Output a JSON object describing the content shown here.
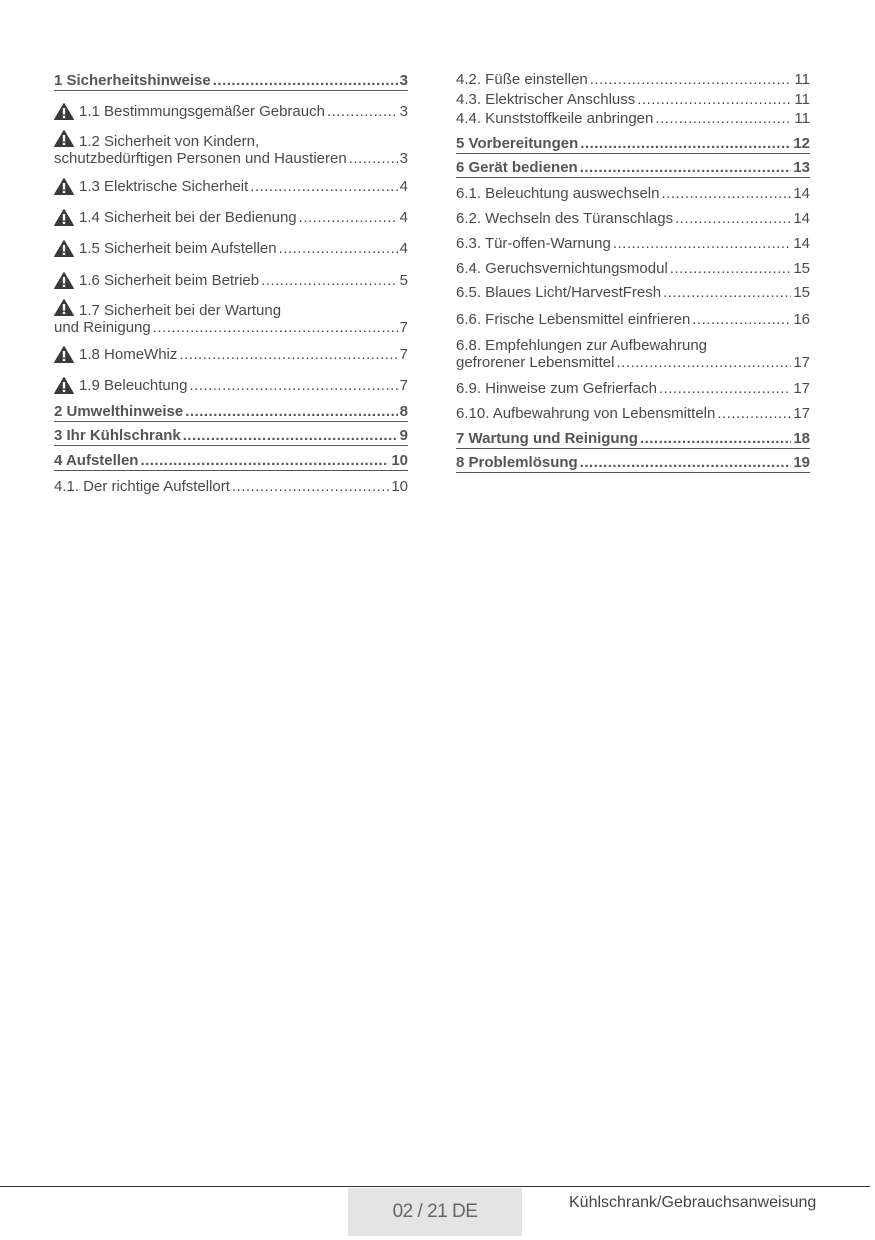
{
  "toc": {
    "left": [
      {
        "title": "1 Sicherheitshinweise",
        "page": "3",
        "heading": true
      },
      {
        "title": "1.1 Bestimmungsgemäßer Gebrauch",
        "page": "3",
        "warning": true
      },
      {
        "line1": "1.2 Sicherheit von Kindern,",
        "title": "schutzbedürftigen Personen und Haustieren",
        "page": "3",
        "warning": true
      },
      {
        "title": "1.3 Elektrische Sicherheit",
        "page": "4",
        "warning": true
      },
      {
        "title": "1.4 Sicherheit bei der Bedienung",
        "page": "4",
        "warning": true
      },
      {
        "title": "1.5 Sicherheit beim Aufstellen",
        "page": "4",
        "warning": true
      },
      {
        "title": "1.6 Sicherheit beim Betrieb",
        "page": "5",
        "warning": true
      },
      {
        "line1": "1.7 Sicherheit bei der Wartung",
        "title": "und Reinigung",
        "page": "7",
        "warning": true
      },
      {
        "title": "1.8 HomeWhiz",
        "page": "7",
        "warning": true
      },
      {
        "title": "1.9 Beleuchtung",
        "page": "7",
        "warning": true
      },
      {
        "title": "2 Umwelthinweise",
        "page": "8",
        "heading": true
      },
      {
        "title": "3 Ihr Kühlschrank",
        "page": "9",
        "heading": true
      },
      {
        "title": "4 Aufstellen",
        "page": "10",
        "heading": true
      },
      {
        "title": "4.1. Der richtige Aufstellort",
        "page": "10"
      }
    ],
    "right": [
      {
        "title": "4.2. Füße einstellen",
        "page": "11"
      },
      {
        "title": "4.3. Elektrischer Anschluss",
        "page": "11"
      },
      {
        "title": "4.4. Kunststoffkeile anbringen",
        "page": "11"
      },
      {
        "title": "5 Vorbereitungen",
        "page": "12",
        "heading": true
      },
      {
        "title": "6 Gerät bedienen",
        "page": "13",
        "heading": true
      },
      {
        "title": "6.1. Beleuchtung auswechseln",
        "page": "14"
      },
      {
        "title": "6.2. Wechseln des Türanschlags",
        "page": "14"
      },
      {
        "title": "6.3. Tür-offen-Warnung",
        "page": "14"
      },
      {
        "title": "6.4. Geruchsvernichtungsmodul",
        "page": "15"
      },
      {
        "title": "6.5. Blaues Licht/HarvestFresh",
        "page": "15"
      },
      {
        "title": "6.6. Frische Lebensmittel einfrieren",
        "page": "16"
      },
      {
        "line1": "6.8. Empfehlungen zur Aufbewahrung",
        "title": "gefrorener Lebensmittel",
        "page": "17"
      },
      {
        "title": "6.9. Hinweise zum Gefrierfach",
        "page": "17"
      },
      {
        "title": "6.10. Aufbewahrung von Lebensmitteln",
        "page": "17"
      },
      {
        "title": "7 Wartung und Reinigung",
        "page": "18",
        "heading": true
      },
      {
        "title": "8 Problemlösung",
        "page": "19",
        "heading": true
      }
    ]
  },
  "icons": {
    "warning": "warning-triangle-icon"
  },
  "footer": {
    "page_label": "02 / 21 DE",
    "doc_title": "Kühlschrank/Gebrauchsanweisung"
  }
}
